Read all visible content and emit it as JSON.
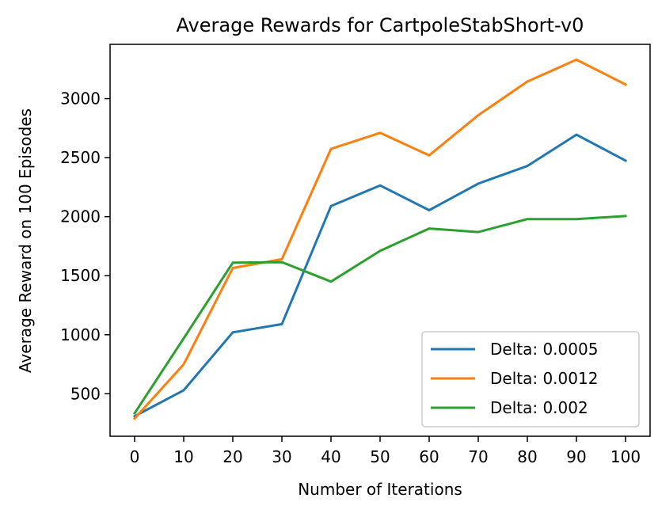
{
  "chart_data": {
    "type": "line",
    "title": "Average Rewards for CartpoleStabShort-v0",
    "xlabel": "Number of Iterations",
    "ylabel": "Average Reward on 100 Episodes",
    "x": [
      0,
      10,
      20,
      30,
      40,
      50,
      60,
      70,
      80,
      90,
      100
    ],
    "xticks": [
      "0",
      "10",
      "20",
      "30",
      "40",
      "50",
      "60",
      "70",
      "80",
      "90",
      "100"
    ],
    "yticks": [
      "500",
      "1000",
      "1500",
      "2000",
      "2500",
      "3000"
    ],
    "xlim": [
      -5,
      105
    ],
    "ylim": [
      140,
      3460
    ],
    "grid": false,
    "legend_position": "lower-right",
    "series": [
      {
        "name": "Delta: 0.0005",
        "color": "#1f77b4",
        "values": [
          310,
          530,
          1020,
          1090,
          2090,
          2265,
          2055,
          2280,
          2430,
          2695,
          2475
        ]
      },
      {
        "name": "Delta: 0.0012",
        "color": "#ff7f0e",
        "values": [
          290,
          750,
          1565,
          1640,
          2575,
          2710,
          2520,
          2860,
          3145,
          3330,
          3120
        ]
      },
      {
        "name": "Delta: 0.002",
        "color": "#2ca02c",
        "values": [
          335,
          970,
          1610,
          1615,
          1450,
          1710,
          1900,
          1870,
          1980,
          1980,
          2005
        ]
      }
    ]
  }
}
